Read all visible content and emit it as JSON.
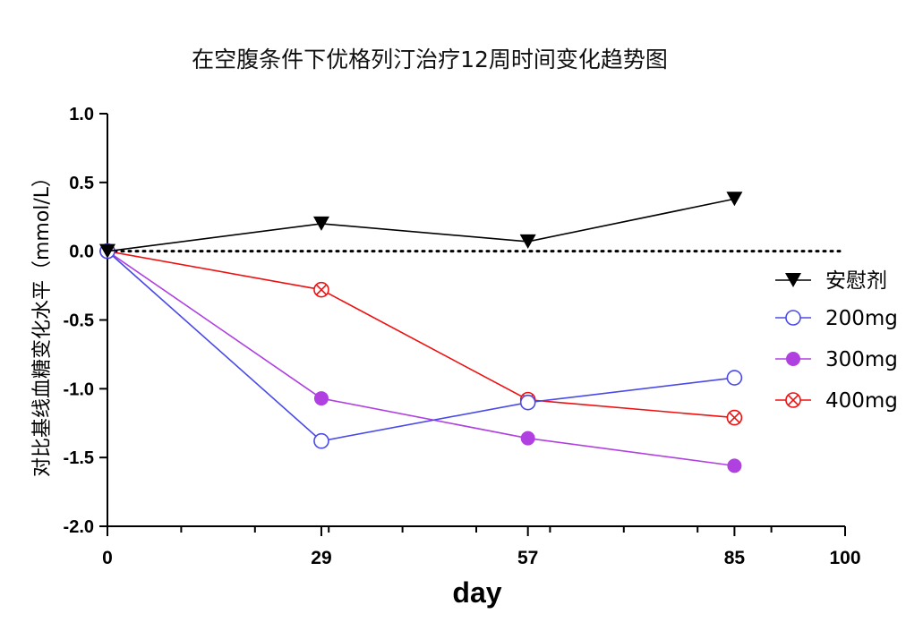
{
  "chart_data": {
    "type": "line",
    "title": "在空腹条件下优格列汀治疗12周时间变化趋势图",
    "xlabel": "day",
    "ylabel": "对比基线血糖变化水平（mmol/L）",
    "xlim": [
      0,
      100
    ],
    "ylim": [
      -2.0,
      1.0
    ],
    "x_ticks": [
      0,
      29,
      57,
      85,
      100
    ],
    "x_minor_ticks": [
      10,
      20,
      30,
      40,
      50,
      60,
      70,
      80,
      90
    ],
    "y_ticks": [
      1.0,
      0.5,
      0.0,
      -0.5,
      -1.0,
      -1.5,
      -2.0
    ],
    "y_tick_labels": [
      "1.0",
      "0.5",
      "0.0",
      "-0.5",
      "-1.0",
      "-1.5",
      "-2.0"
    ],
    "reference_line": {
      "y": 0,
      "style": "dotted"
    },
    "legend_position": "right",
    "series": [
      {
        "name": "安慰剂",
        "color": "#000000",
        "marker": "triangle-down",
        "x": [
          0,
          29,
          57,
          85
        ],
        "y": [
          0.0,
          0.2,
          0.07,
          0.38
        ]
      },
      {
        "name": "200mg",
        "color": "#4a4ae8",
        "marker": "open-circle",
        "x": [
          0,
          29,
          57,
          85
        ],
        "y": [
          0.0,
          -1.38,
          -1.1,
          -0.92
        ]
      },
      {
        "name": "300mg",
        "color": "#b040e0",
        "marker": "filled-circle",
        "x": [
          0,
          29,
          57,
          85
        ],
        "y": [
          0.0,
          -1.07,
          -1.36,
          -1.56
        ]
      },
      {
        "name": "400mg",
        "color": "#ee1111",
        "marker": "circle-x",
        "x": [
          0,
          29,
          57,
          85
        ],
        "y": [
          0.0,
          -0.28,
          -1.08,
          -1.21
        ]
      }
    ]
  }
}
